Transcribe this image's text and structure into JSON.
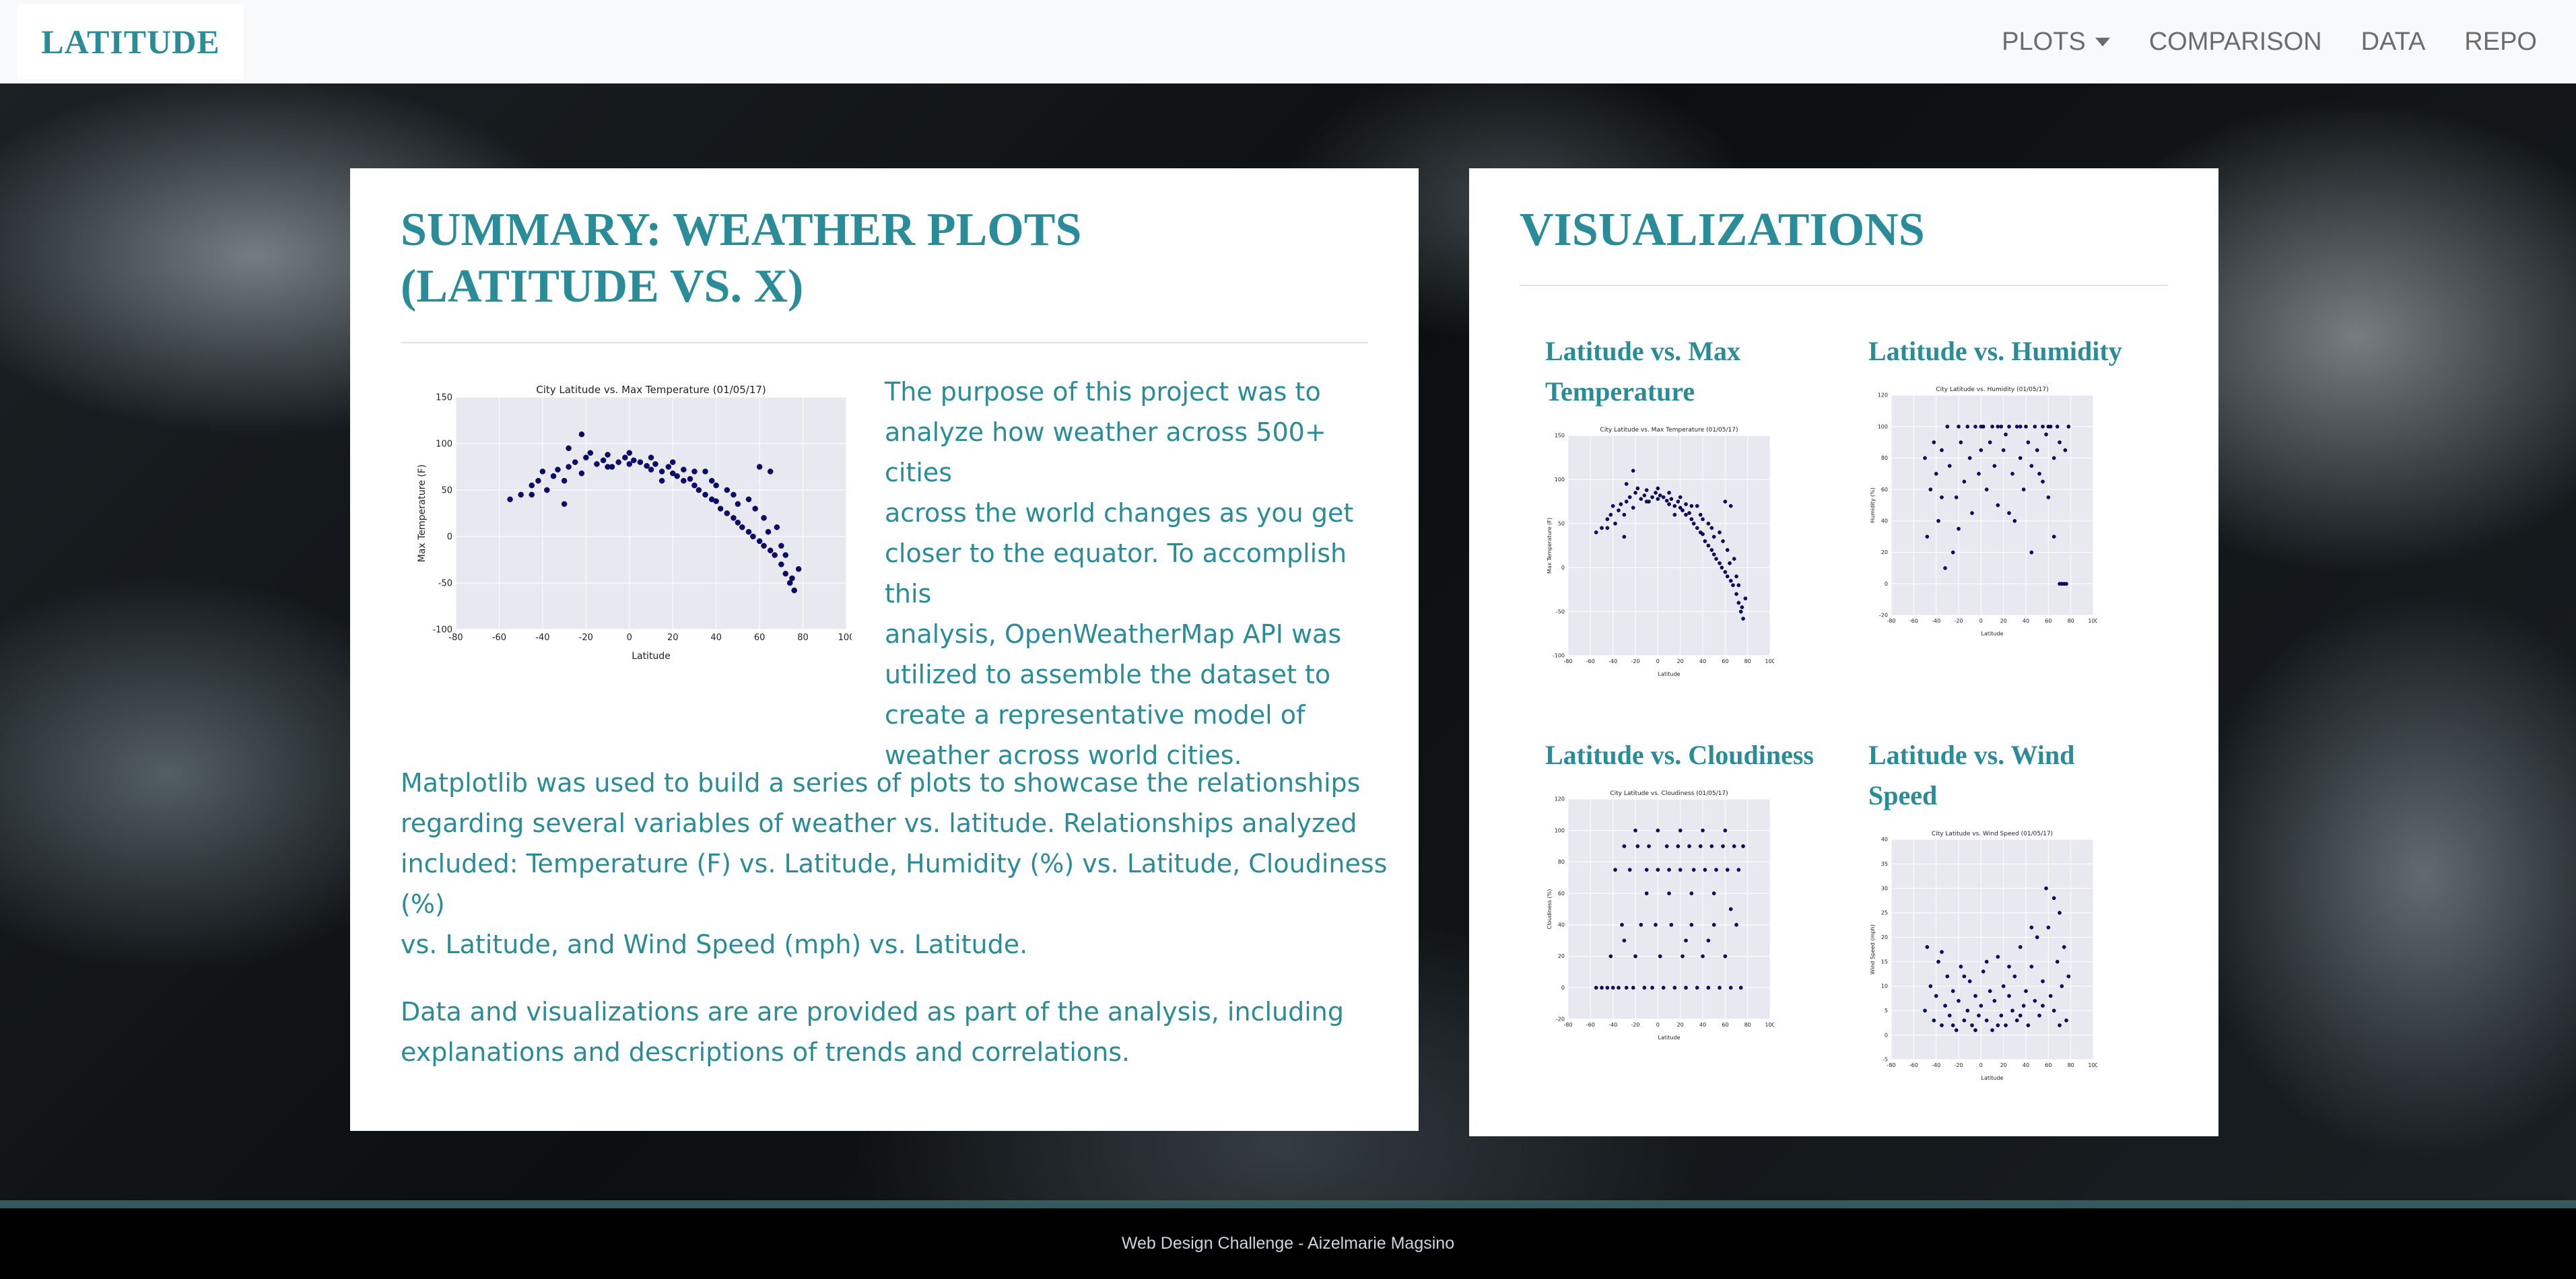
{
  "navbar": {
    "brand": "LATITUDE",
    "links": [
      "PLOTS",
      "COMPARISON",
      "DATA",
      "REPO"
    ]
  },
  "summary": {
    "title_line1": "SUMMARY: WEATHER PLOTS",
    "title_line2": "(LATITUDE VS. X)",
    "intro_lines": [
      "The purpose of this project was to",
      "analyze how weather across 500+ cities",
      "across the world changes as you get",
      "closer to the equator. To accomplish this",
      "analysis, OpenWeatherMap API was",
      "utilized to assemble the dataset to",
      "create a representative model of",
      "weather across world cities."
    ],
    "para2_lines": [
      "Matplotlib was used to build a series of plots to showcase the relationships",
      "regarding several variables of weather vs. latitude. Relationships analyzed",
      "included: Temperature (F) vs. Latitude, Humidity (%) vs. Latitude, Cloudiness (%)",
      "vs. Latitude, and Wind Speed (mph) vs. Latitude."
    ],
    "para3_lines": [
      "Data and visualizations are are provided as part of the analysis, including",
      "explanations and descriptions of trends and correlations."
    ]
  },
  "visualizations": {
    "title": "VISUALIZATIONS",
    "items": [
      {
        "line1": "Latitude vs. Max",
        "line2": "Temperature"
      },
      {
        "line1": "Latitude vs. Humidity",
        "line2": ""
      },
      {
        "line1": "Latitude vs. Cloudiness",
        "line2": ""
      },
      {
        "line1": "Latitude vs. Wind",
        "line2": "Speed"
      }
    ]
  },
  "footer": {
    "text": "Web Design Challenge - Aizelmarie Magsino"
  },
  "chart_data": [
    {
      "type": "scatter",
      "title": "City Latitude vs. Max Temperature (01/05/17)",
      "xlabel": "Latitude",
      "ylabel": "Max Temperature (F)",
      "xlim": [
        -80,
        100
      ],
      "ylim": [
        -100,
        150
      ],
      "xticks": [
        -80,
        -60,
        -40,
        -20,
        0,
        20,
        40,
        60,
        80,
        100
      ],
      "yticks": [
        -100,
        -50,
        0,
        50,
        100,
        150
      ],
      "points": [
        [
          -55,
          40
        ],
        [
          -50,
          45
        ],
        [
          -45,
          55
        ],
        [
          -42,
          60
        ],
        [
          -40,
          70
        ],
        [
          -38,
          50
        ],
        [
          -35,
          65
        ],
        [
          -33,
          72
        ],
        [
          -30,
          35
        ],
        [
          -28,
          75
        ],
        [
          -25,
          80
        ],
        [
          -22,
          68
        ],
        [
          -20,
          85
        ],
        [
          -18,
          90
        ],
        [
          -15,
          78
        ],
        [
          -12,
          82
        ],
        [
          -10,
          88
        ],
        [
          -8,
          75
        ],
        [
          -5,
          80
        ],
        [
          -2,
          85
        ],
        [
          0,
          78
        ],
        [
          2,
          82
        ],
        [
          5,
          80
        ],
        [
          8,
          76
        ],
        [
          10,
          72
        ],
        [
          12,
          78
        ],
        [
          15,
          70
        ],
        [
          18,
          75
        ],
        [
          20,
          68
        ],
        [
          22,
          65
        ],
        [
          25,
          60
        ],
        [
          28,
          62
        ],
        [
          30,
          55
        ],
        [
          32,
          50
        ],
        [
          35,
          45
        ],
        [
          38,
          40
        ],
        [
          40,
          38
        ],
        [
          42,
          30
        ],
        [
          45,
          25
        ],
        [
          48,
          20
        ],
        [
          50,
          15
        ],
        [
          52,
          10
        ],
        [
          55,
          5
        ],
        [
          57,
          0
        ],
        [
          60,
          -5
        ],
        [
          62,
          -10
        ],
        [
          65,
          -15
        ],
        [
          67,
          -20
        ],
        [
          70,
          -30
        ],
        [
          72,
          -40
        ],
        [
          74,
          -50
        ],
        [
          76,
          -58
        ],
        [
          78,
          -35
        ],
        [
          60,
          75
        ],
        [
          65,
          70
        ],
        [
          -22,
          110
        ],
        [
          -28,
          95
        ],
        [
          35,
          70
        ],
        [
          45,
          50
        ],
        [
          55,
          40
        ],
        [
          62,
          20
        ],
        [
          68,
          10
        ],
        [
          70,
          -10
        ],
        [
          50,
          35
        ],
        [
          40,
          55
        ],
        [
          30,
          70
        ],
        [
          20,
          80
        ],
        [
          10,
          85
        ],
        [
          0,
          90
        ],
        [
          -10,
          75
        ],
        [
          -30,
          60
        ],
        [
          -45,
          45
        ],
        [
          15,
          60
        ],
        [
          25,
          72
        ],
        [
          58,
          30
        ],
        [
          64,
          5
        ],
        [
          72,
          -20
        ],
        [
          75,
          -45
        ],
        [
          48,
          45
        ],
        [
          38,
          60
        ]
      ]
    },
    {
      "type": "scatter",
      "title": "City Latitude vs. Humidity (01/05/17)",
      "xlabel": "Latitude",
      "ylabel": "Humidity (%)",
      "xlim": [
        -80,
        100
      ],
      "ylim": [
        -20,
        120
      ],
      "xticks": [
        -80,
        -60,
        -40,
        -20,
        0,
        20,
        40,
        60,
        80,
        100
      ],
      "yticks": [
        -20,
        0,
        20,
        40,
        60,
        80,
        100,
        120
      ],
      "points": [
        [
          -50,
          80
        ],
        [
          -45,
          60
        ],
        [
          -42,
          90
        ],
        [
          -40,
          70
        ],
        [
          -38,
          40
        ],
        [
          -35,
          85
        ],
        [
          -30,
          100
        ],
        [
          -28,
          75
        ],
        [
          -25,
          20
        ],
        [
          -22,
          55
        ],
        [
          -20,
          100
        ],
        [
          -18,
          90
        ],
        [
          -15,
          65
        ],
        [
          -12,
          100
        ],
        [
          -10,
          80
        ],
        [
          -8,
          45
        ],
        [
          -5,
          100
        ],
        [
          -2,
          70
        ],
        [
          0,
          85
        ],
        [
          2,
          100
        ],
        [
          5,
          60
        ],
        [
          8,
          90
        ],
        [
          10,
          100
        ],
        [
          12,
          75
        ],
        [
          15,
          50
        ],
        [
          18,
          100
        ],
        [
          20,
          85
        ],
        [
          22,
          95
        ],
        [
          25,
          100
        ],
        [
          28,
          70
        ],
        [
          30,
          40
        ],
        [
          32,
          100
        ],
        [
          35,
          80
        ],
        [
          38,
          60
        ],
        [
          40,
          100
        ],
        [
          42,
          90
        ],
        [
          45,
          20
        ],
        [
          48,
          100
        ],
        [
          50,
          85
        ],
        [
          52,
          70
        ],
        [
          55,
          100
        ],
        [
          58,
          95
        ],
        [
          60,
          55
        ],
        [
          62,
          100
        ],
        [
          65,
          80
        ],
        [
          68,
          100
        ],
        [
          70,
          0
        ],
        [
          72,
          0
        ],
        [
          74,
          0
        ],
        [
          76,
          0
        ],
        [
          78,
          100
        ],
        [
          -32,
          10
        ],
        [
          -48,
          30
        ],
        [
          65,
          30
        ],
        [
          45,
          75
        ],
        [
          55,
          65
        ],
        [
          35,
          100
        ],
        [
          25,
          45
        ],
        [
          15,
          100
        ],
        [
          -35,
          55
        ],
        [
          60,
          100
        ],
        [
          70,
          90
        ],
        [
          75,
          85
        ],
        [
          0,
          100
        ],
        [
          -20,
          35
        ]
      ]
    },
    {
      "type": "scatter",
      "title": "City Latitude vs. Cloudiness (01/05/17)",
      "xlabel": "Latitude",
      "ylabel": "Cloudiness (%)",
      "xlim": [
        -80,
        100
      ],
      "ylim": [
        -20,
        120
      ],
      "xticks": [
        -80,
        -60,
        -40,
        -20,
        0,
        20,
        40,
        60,
        80,
        100
      ],
      "yticks": [
        -20,
        0,
        20,
        40,
        60,
        80,
        100,
        120
      ],
      "points": [
        [
          -55,
          0
        ],
        [
          -50,
          0
        ],
        [
          -45,
          0
        ],
        [
          -42,
          20
        ],
        [
          -40,
          0
        ],
        [
          -38,
          75
        ],
        [
          -35,
          0
        ],
        [
          -32,
          40
        ],
        [
          -30,
          90
        ],
        [
          -28,
          0
        ],
        [
          -25,
          75
        ],
        [
          -22,
          0
        ],
        [
          -20,
          20
        ],
        [
          -18,
          90
        ],
        [
          -15,
          40
        ],
        [
          -12,
          0
        ],
        [
          -10,
          75
        ],
        [
          -8,
          90
        ],
        [
          -5,
          0
        ],
        [
          -2,
          40
        ],
        [
          0,
          75
        ],
        [
          2,
          20
        ],
        [
          5,
          0
        ],
        [
          8,
          90
        ],
        [
          10,
          75
        ],
        [
          12,
          40
        ],
        [
          15,
          0
        ],
        [
          18,
          90
        ],
        [
          20,
          75
        ],
        [
          22,
          20
        ],
        [
          25,
          0
        ],
        [
          28,
          90
        ],
        [
          30,
          40
        ],
        [
          32,
          75
        ],
        [
          35,
          0
        ],
        [
          38,
          90
        ],
        [
          40,
          20
        ],
        [
          42,
          75
        ],
        [
          45,
          0
        ],
        [
          48,
          90
        ],
        [
          50,
          40
        ],
        [
          52,
          75
        ],
        [
          55,
          0
        ],
        [
          58,
          90
        ],
        [
          60,
          20
        ],
        [
          62,
          75
        ],
        [
          65,
          0
        ],
        [
          68,
          90
        ],
        [
          70,
          40
        ],
        [
          72,
          75
        ],
        [
          74,
          0
        ],
        [
          76,
          90
        ],
        [
          -20,
          100
        ],
        [
          0,
          100
        ],
        [
          20,
          100
        ],
        [
          40,
          100
        ],
        [
          60,
          100
        ],
        [
          50,
          60
        ],
        [
          30,
          60
        ],
        [
          10,
          60
        ],
        [
          -10,
          60
        ],
        [
          65,
          50
        ],
        [
          45,
          30
        ],
        [
          25,
          30
        ],
        [
          -30,
          30
        ]
      ]
    },
    {
      "type": "scatter",
      "title": "City Latitude vs. Wind Speed (01/05/17)",
      "xlabel": "Latitude",
      "ylabel": "Wind Speed (mph)",
      "xlim": [
        -80,
        100
      ],
      "ylim": [
        -5,
        40
      ],
      "xticks": [
        -80,
        -60,
        -40,
        -20,
        0,
        20,
        40,
        60,
        80,
        100
      ],
      "yticks": [
        -5,
        0,
        5,
        10,
        15,
        20,
        25,
        30,
        35,
        40
      ],
      "points": [
        [
          -50,
          5
        ],
        [
          -48,
          18
        ],
        [
          -45,
          10
        ],
        [
          -42,
          3
        ],
        [
          -40,
          8
        ],
        [
          -38,
          15
        ],
        [
          -35,
          2
        ],
        [
          -32,
          6
        ],
        [
          -30,
          12
        ],
        [
          -28,
          4
        ],
        [
          -25,
          9
        ],
        [
          -22,
          1
        ],
        [
          -20,
          7
        ],
        [
          -18,
          14
        ],
        [
          -15,
          3
        ],
        [
          -12,
          5
        ],
        [
          -10,
          11
        ],
        [
          -8,
          2
        ],
        [
          -5,
          8
        ],
        [
          -2,
          4
        ],
        [
          0,
          6
        ],
        [
          2,
          13
        ],
        [
          5,
          3
        ],
        [
          8,
          9
        ],
        [
          10,
          1
        ],
        [
          12,
          7
        ],
        [
          15,
          16
        ],
        [
          18,
          4
        ],
        [
          20,
          10
        ],
        [
          22,
          2
        ],
        [
          25,
          8
        ],
        [
          28,
          5
        ],
        [
          30,
          12
        ],
        [
          32,
          3
        ],
        [
          35,
          18
        ],
        [
          38,
          6
        ],
        [
          40,
          9
        ],
        [
          42,
          2
        ],
        [
          45,
          14
        ],
        [
          48,
          7
        ],
        [
          50,
          20
        ],
        [
          52,
          4
        ],
        [
          55,
          11
        ],
        [
          58,
          30
        ],
        [
          60,
          22
        ],
        [
          62,
          8
        ],
        [
          65,
          28
        ],
        [
          68,
          15
        ],
        [
          70,
          25
        ],
        [
          72,
          10
        ],
        [
          74,
          18
        ],
        [
          76,
          3
        ],
        [
          78,
          12
        ],
        [
          -35,
          17
        ],
        [
          -15,
          12
        ],
        [
          5,
          15
        ],
        [
          25,
          14
        ],
        [
          45,
          22
        ],
        [
          55,
          6
        ],
        [
          65,
          5
        ],
        [
          70,
          2
        ],
        [
          35,
          4
        ],
        [
          15,
          2
        ],
        [
          -5,
          1
        ],
        [
          -25,
          2
        ]
      ]
    }
  ]
}
